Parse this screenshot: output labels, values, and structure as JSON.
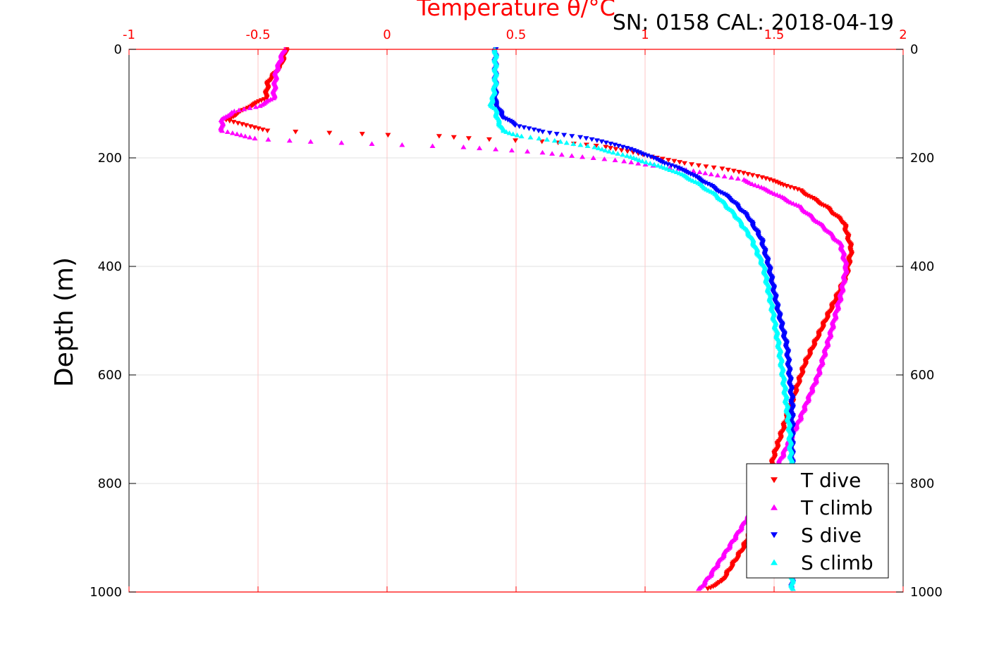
{
  "chart_data": {
    "type": "scatter",
    "title": "Temperature θ/°C",
    "subtitle": "SN: 0158  CAL: 2018-04-19",
    "ylabel": "Depth (m)",
    "xlim": [
      -1,
      2
    ],
    "ylim": [
      0,
      1000
    ],
    "y_reversed": true,
    "x_axis_position": "top",
    "x_ticks": [
      "-1",
      "-0.5",
      "0",
      "0.5",
      "1",
      "1.5",
      "2"
    ],
    "y_ticks": [
      "0",
      "200",
      "400",
      "600",
      "800",
      "1000"
    ],
    "grid": true,
    "legend_position": "bottom-right",
    "series": [
      {
        "name": "T dive",
        "color": "#ff0000",
        "marker": "triangle-down",
        "profile": [
          [
            -0.39,
            0
          ],
          [
            -0.41,
            30
          ],
          [
            -0.46,
            60
          ],
          [
            -0.47,
            90
          ],
          [
            -0.55,
            110
          ],
          [
            -0.62,
            130
          ],
          [
            -0.55,
            140
          ],
          [
            -0.46,
            150
          ],
          [
            -0.3,
            153
          ],
          [
            -0.15,
            155
          ],
          [
            0.0,
            158
          ],
          [
            0.2,
            160
          ],
          [
            0.35,
            165
          ],
          [
            0.6,
            170
          ],
          [
            0.75,
            175
          ],
          [
            0.85,
            180
          ],
          [
            0.95,
            190
          ],
          [
            1.05,
            200
          ],
          [
            1.15,
            210
          ],
          [
            1.3,
            220
          ],
          [
            1.45,
            235
          ],
          [
            1.6,
            260
          ],
          [
            1.7,
            290
          ],
          [
            1.77,
            320
          ],
          [
            1.8,
            370
          ],
          [
            1.78,
            420
          ],
          [
            1.7,
            500
          ],
          [
            1.62,
            580
          ],
          [
            1.57,
            650
          ],
          [
            1.5,
            750
          ],
          [
            1.45,
            850
          ],
          [
            1.38,
            920
          ],
          [
            1.3,
            980
          ],
          [
            1.24,
            995
          ]
        ]
      },
      {
        "name": "T climb",
        "color": "#ff00ff",
        "marker": "triangle-up",
        "profile": [
          [
            -0.4,
            0
          ],
          [
            -0.43,
            40
          ],
          [
            -0.44,
            90
          ],
          [
            -0.5,
            105
          ],
          [
            -0.6,
            115
          ],
          [
            -0.64,
            130
          ],
          [
            -0.64,
            150
          ],
          [
            -0.5,
            165
          ],
          [
            -0.3,
            170
          ],
          [
            0.0,
            175
          ],
          [
            0.3,
            180
          ],
          [
            0.6,
            190
          ],
          [
            0.9,
            205
          ],
          [
            1.05,
            215
          ],
          [
            1.2,
            225
          ],
          [
            1.38,
            240
          ],
          [
            1.5,
            265
          ],
          [
            1.6,
            290
          ],
          [
            1.7,
            330
          ],
          [
            1.76,
            360
          ],
          [
            1.78,
            400
          ],
          [
            1.76,
            450
          ],
          [
            1.72,
            520
          ],
          [
            1.67,
            600
          ],
          [
            1.6,
            680
          ],
          [
            1.5,
            780
          ],
          [
            1.4,
            860
          ],
          [
            1.32,
            920
          ],
          [
            1.25,
            970
          ],
          [
            1.21,
            995
          ]
        ]
      },
      {
        "name": "S dive",
        "color": "#0000ff",
        "marker": "triangle-down",
        "profile": [
          [
            0.42,
            0
          ],
          [
            0.42,
            60
          ],
          [
            0.42,
            100
          ],
          [
            0.45,
            125
          ],
          [
            0.5,
            140
          ],
          [
            0.6,
            152
          ],
          [
            0.75,
            162
          ],
          [
            0.88,
            175
          ],
          [
            0.98,
            190
          ],
          [
            1.08,
            210
          ],
          [
            1.16,
            225
          ],
          [
            1.25,
            250
          ],
          [
            1.33,
            275
          ],
          [
            1.4,
            310
          ],
          [
            1.45,
            350
          ],
          [
            1.48,
            400
          ],
          [
            1.51,
            470
          ],
          [
            1.55,
            550
          ],
          [
            1.56,
            600
          ],
          [
            1.57,
            650
          ],
          [
            1.57,
            800
          ],
          [
            1.57,
            995
          ]
        ]
      },
      {
        "name": "S climb",
        "color": "#00ffff",
        "marker": "triangle-up",
        "profile": [
          [
            0.42,
            0
          ],
          [
            0.42,
            60
          ],
          [
            0.41,
            90
          ],
          [
            0.4,
            100
          ],
          [
            0.42,
            110
          ],
          [
            0.43,
            130
          ],
          [
            0.45,
            150
          ],
          [
            0.52,
            160
          ],
          [
            0.65,
            168
          ],
          [
            0.8,
            180
          ],
          [
            0.92,
            195
          ],
          [
            1.02,
            210
          ],
          [
            1.12,
            225
          ],
          [
            1.2,
            245
          ],
          [
            1.28,
            270
          ],
          [
            1.35,
            305
          ],
          [
            1.41,
            345
          ],
          [
            1.46,
            400
          ],
          [
            1.49,
            470
          ],
          [
            1.52,
            550
          ],
          [
            1.54,
            620
          ],
          [
            1.56,
            700
          ],
          [
            1.57,
            800
          ],
          [
            1.57,
            995
          ]
        ]
      }
    ]
  }
}
